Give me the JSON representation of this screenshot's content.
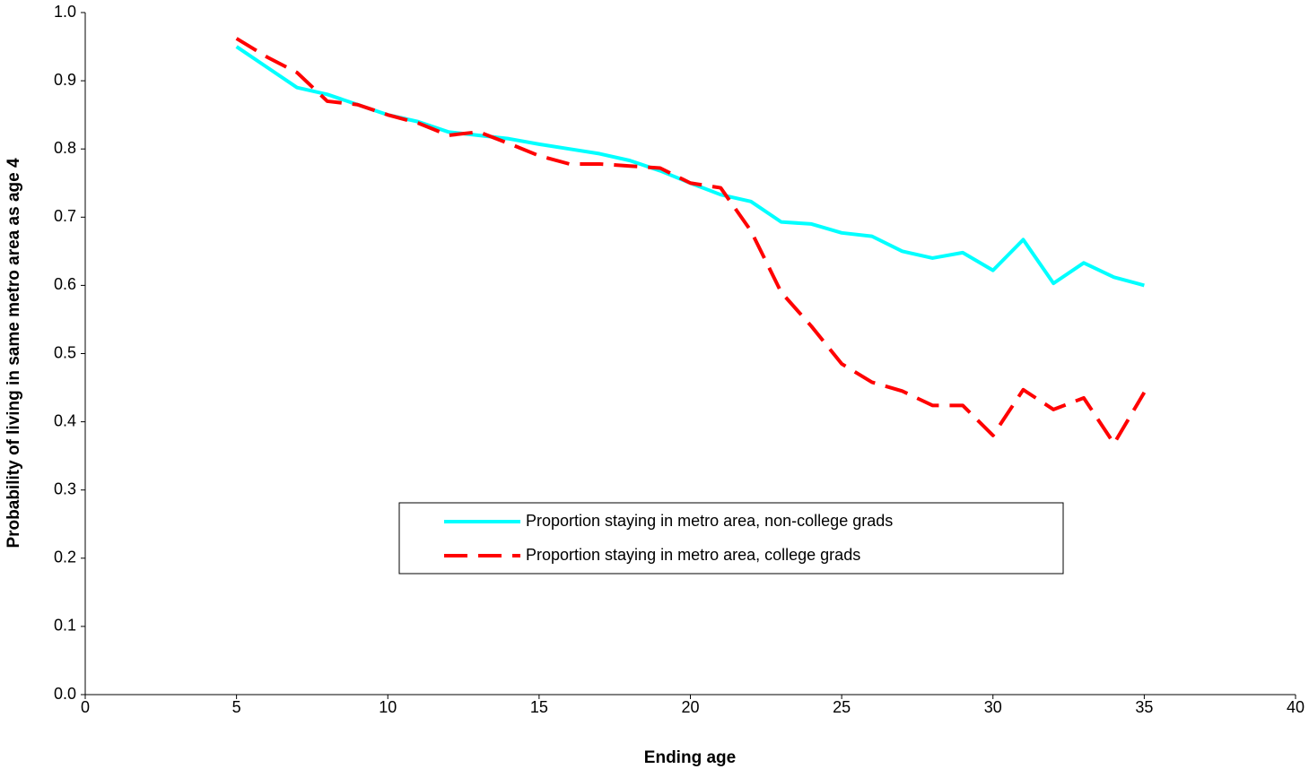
{
  "chart_data": {
    "type": "line",
    "x_label": "Ending age",
    "y_label": "Probability of living in same metro area as age 4",
    "x": [
      5,
      6,
      7,
      8,
      9,
      10,
      11,
      12,
      13,
      14,
      15,
      16,
      17,
      18,
      19,
      20,
      21,
      22,
      23,
      24,
      25,
      26,
      27,
      28,
      29,
      30,
      31,
      32,
      33,
      34,
      35
    ],
    "series": [
      {
        "name": "Proportion staying in metro area, non-college grads",
        "color": "#00ffff",
        "dash": false,
        "values": [
          0.95,
          0.92,
          0.89,
          0.88,
          0.865,
          0.85,
          0.84,
          0.825,
          0.82,
          0.815,
          0.807,
          0.8,
          0.793,
          0.783,
          0.768,
          0.75,
          0.733,
          0.723,
          0.693,
          0.69,
          0.677,
          0.672,
          0.65,
          0.64,
          0.648,
          0.622,
          0.667,
          0.603,
          0.633,
          0.612,
          0.6
        ]
      },
      {
        "name": "Proportion staying in metro area, college grads",
        "color": "#ff0000",
        "dash": true,
        "values": [
          0.962,
          0.935,
          0.912,
          0.87,
          0.865,
          0.85,
          0.838,
          0.82,
          0.825,
          0.808,
          0.79,
          0.778,
          0.778,
          0.775,
          0.772,
          0.75,
          0.743,
          0.68,
          0.59,
          0.54,
          0.485,
          0.458,
          0.445,
          0.424,
          0.424,
          0.38,
          0.447,
          0.418,
          0.435,
          0.368,
          0.443
        ]
      }
    ],
    "xlim": [
      0,
      40
    ],
    "xticks": [
      0,
      5,
      10,
      15,
      20,
      25,
      30,
      35,
      40
    ],
    "ylim": [
      0,
      1
    ],
    "yticks": [
      {
        "value": 0,
        "label": "0.0"
      },
      0.1,
      0.2,
      0.3,
      0.4,
      0.5,
      0.6,
      0.7,
      0.8,
      0.9,
      {
        "value": 1,
        "label": "1.0"
      }
    ],
    "grid": false
  }
}
